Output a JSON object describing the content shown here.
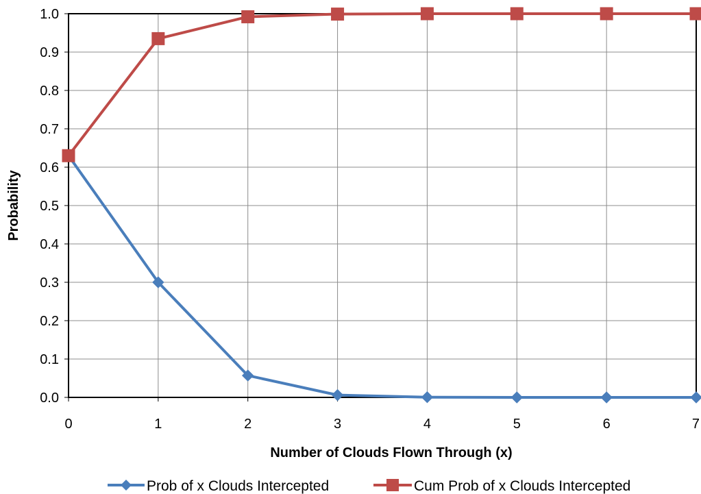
{
  "chart_data": {
    "type": "line",
    "title": "",
    "xlabel": "Number of Clouds Flown Through (x)",
    "ylabel": "Probability",
    "x": [
      0,
      1,
      2,
      3,
      4,
      5,
      6,
      7
    ],
    "xlim": [
      0,
      7
    ],
    "ylim": [
      0.0,
      1.0
    ],
    "xticks": [
      "0",
      "1",
      "2",
      "3",
      "4",
      "5",
      "6",
      "7"
    ],
    "yticks": [
      "0.0",
      "0.1",
      "0.2",
      "0.3",
      "0.4",
      "0.5",
      "0.6",
      "0.7",
      "0.8",
      "0.9",
      "1.0"
    ],
    "grid": true,
    "legend_position": "bottom",
    "series": [
      {
        "name": "Prob of x Clouds Intercepted",
        "values": [
          0.63,
          0.3,
          0.057,
          0.006,
          0.0005,
          0.0,
          0.0,
          0.0
        ],
        "color": "#4a7ebb",
        "marker": "diamond"
      },
      {
        "name": "Cum Prob of x Clouds Intercepted",
        "values": [
          0.63,
          0.935,
          0.992,
          0.999,
          1.0,
          1.0,
          1.0,
          1.0
        ],
        "color": "#be4b48",
        "marker": "square"
      }
    ]
  }
}
